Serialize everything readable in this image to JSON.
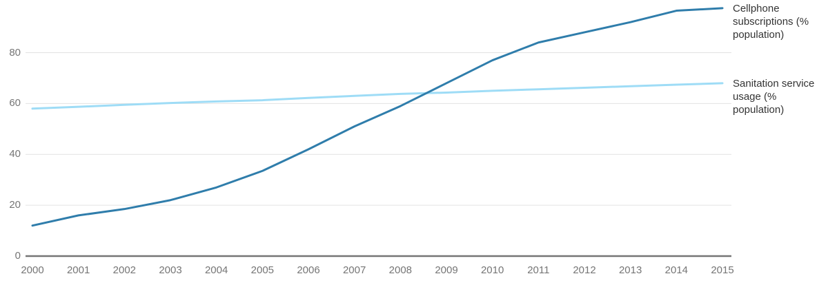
{
  "chart_data": {
    "type": "line",
    "title": "",
    "xlabel": "",
    "ylabel": "",
    "x": [
      2000,
      2001,
      2002,
      2003,
      2004,
      2005,
      2006,
      2007,
      2008,
      2009,
      2010,
      2011,
      2012,
      2013,
      2014,
      2015
    ],
    "x_tick_labels": [
      "2000",
      "2001",
      "2002",
      "2003",
      "2004",
      "2005",
      "2006",
      "2007",
      "2008",
      "2009",
      "2010",
      "2011",
      "2012",
      "2013",
      "2014",
      "2015"
    ],
    "yticks": [
      0,
      20,
      40,
      60,
      80
    ],
    "ylim": [
      0,
      100
    ],
    "grid": "horizontal-only",
    "legend_position": "right-at-line-ends",
    "series": [
      {
        "name": "Cellphone subscriptions (% population)",
        "color": "#2f7dab",
        "values": [
          12,
          16,
          18.5,
          22,
          27,
          33.5,
          42,
          51,
          59,
          68,
          77,
          84,
          88,
          92,
          96.5,
          97.5
        ]
      },
      {
        "name": "Sanitation service usage (% population)",
        "color": "#9edcf6",
        "values": [
          58,
          58.7,
          59.5,
          60.2,
          60.8,
          61.3,
          62.2,
          63,
          63.8,
          64.3,
          65,
          65.6,
          66.2,
          66.8,
          67.4,
          68
        ]
      }
    ]
  },
  "legend": {
    "cellphone_label": "Cellphone subscriptions (% population)",
    "sanitation_label": "Sanitation service usage (% population)"
  },
  "colors": {
    "cellphone_line": "#2f7dab",
    "sanitation_line": "#9edcf6",
    "gridline": "#e2e2e2",
    "axis": "#757575",
    "tick_label": "#757575",
    "legend_text": "#333333",
    "background": "#ffffff"
  }
}
